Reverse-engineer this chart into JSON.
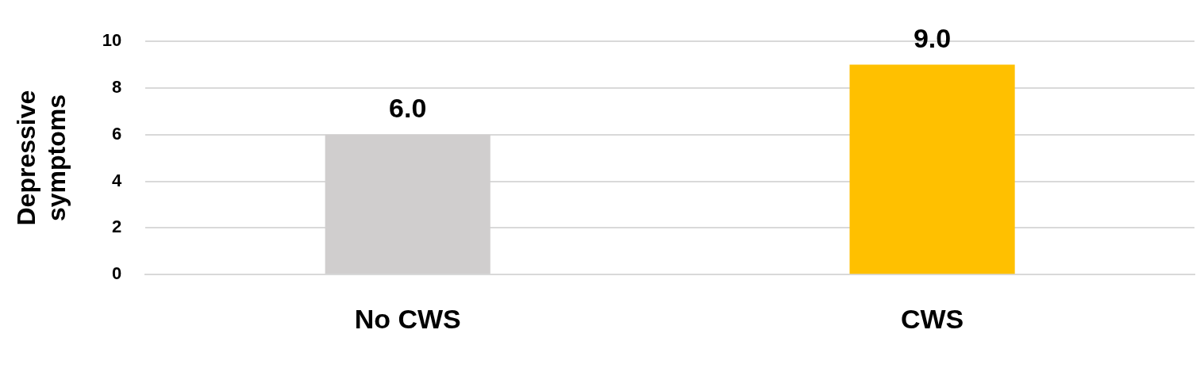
{
  "chart_data": {
    "type": "bar",
    "ylabel": "Depressive symptoms",
    "categories": [
      "No CWS",
      "CWS"
    ],
    "values": [
      6.0,
      9.0
    ],
    "colors": [
      "#d0cece",
      "#ffc000"
    ],
    "value_labels": [
      "6.0",
      "9.0"
    ],
    "ylim": [
      0,
      10
    ],
    "yticks": [
      0,
      2,
      4,
      6,
      8,
      10
    ],
    "grid": "y",
    "legend": false
  }
}
